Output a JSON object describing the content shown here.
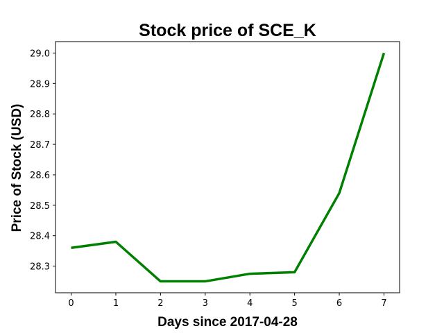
{
  "chart_data": {
    "type": "line",
    "title": "Stock price of SCE_K",
    "xlabel": "Days since 2017-04-28",
    "ylabel": "Price of Stock (USD)",
    "x": [
      0,
      1,
      2,
      3,
      4,
      5,
      6,
      7
    ],
    "series": [
      {
        "values": [
          28.36,
          28.38,
          28.25,
          28.25,
          28.275,
          28.28,
          28.54,
          29.0
        ],
        "color": "#008000"
      }
    ],
    "xticks": [
      "0",
      "1",
      "2",
      "3",
      "4",
      "5",
      "6",
      "7"
    ],
    "yticks": [
      "28.3",
      "28.4",
      "28.5",
      "28.6",
      "28.7",
      "28.8",
      "28.9",
      "29.0"
    ],
    "xlim": [
      -0.35,
      7.35
    ],
    "ylim": [
      28.2125,
      29.0375
    ],
    "grid": false,
    "legend": "none"
  }
}
